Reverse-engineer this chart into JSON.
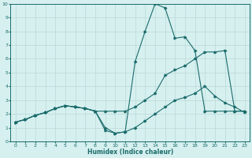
{
  "xlabel": "Humidex (Indice chaleur)",
  "background_color": "#d6f0ef",
  "grid_color": "#b8d8d8",
  "line_color": "#1a6b6b",
  "xlim": [
    -0.5,
    23.5
  ],
  "ylim": [
    0,
    10
  ],
  "xticks": [
    0,
    1,
    2,
    3,
    4,
    5,
    6,
    7,
    8,
    9,
    10,
    11,
    12,
    13,
    14,
    15,
    16,
    17,
    18,
    19,
    20,
    21,
    22,
    23
  ],
  "yticks": [
    0,
    1,
    2,
    3,
    4,
    5,
    6,
    7,
    8,
    9,
    10
  ],
  "series1_x": [
    0,
    1,
    2,
    3,
    4,
    5,
    6,
    7,
    8,
    9,
    10,
    11,
    12,
    13,
    14,
    15,
    16,
    17,
    18,
    19,
    20,
    21,
    22,
    23
  ],
  "series1_y": [
    1.4,
    1.6,
    1.9,
    2.1,
    2.4,
    2.6,
    2.5,
    2.4,
    2.2,
    0.8,
    0.6,
    0.7,
    1.0,
    1.5,
    2.0,
    2.5,
    3.0,
    3.2,
    3.5,
    4.0,
    3.3,
    2.8,
    2.5,
    2.1
  ],
  "series2_x": [
    0,
    1,
    2,
    3,
    4,
    5,
    6,
    7,
    8,
    9,
    10,
    11,
    12,
    13,
    14,
    15,
    16,
    17,
    18,
    19,
    20,
    21,
    22,
    23
  ],
  "series2_y": [
    1.4,
    1.6,
    1.9,
    2.1,
    2.4,
    2.6,
    2.5,
    2.4,
    2.2,
    2.2,
    2.2,
    2.2,
    2.5,
    3.0,
    3.5,
    4.8,
    5.2,
    5.5,
    6.0,
    6.5,
    6.5,
    6.6,
    2.2,
    2.2
  ],
  "series3_x": [
    0,
    1,
    2,
    3,
    4,
    5,
    6,
    7,
    8,
    9,
    10,
    11,
    12,
    13,
    14,
    15,
    16,
    17,
    18,
    19,
    20,
    21,
    22,
    23
  ],
  "series3_y": [
    1.4,
    1.6,
    1.9,
    2.1,
    2.4,
    2.6,
    2.5,
    2.4,
    2.2,
    1.0,
    0.6,
    0.7,
    5.8,
    8.0,
    10.0,
    9.7,
    7.5,
    7.6,
    6.6,
    2.2,
    2.2,
    2.2,
    2.2,
    2.2
  ]
}
